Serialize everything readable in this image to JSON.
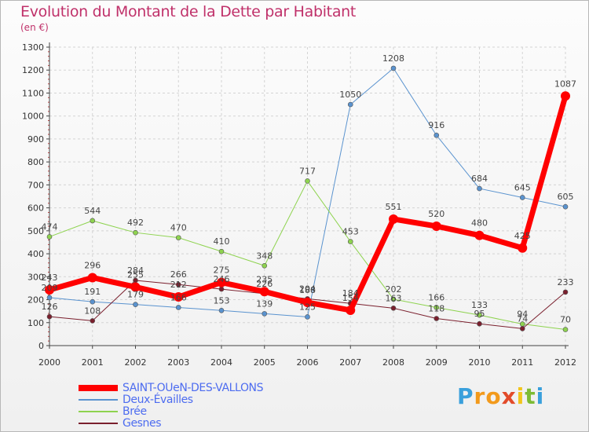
{
  "title": "Evolution du Montant de la Dette par Habitant",
  "subtitle": "(en €)",
  "logo": {
    "letters": [
      "P",
      "r",
      "o",
      "x",
      "i",
      "t",
      "i"
    ],
    "colors": [
      "#3aa0dc",
      "#f29a1c",
      "#f29a1c",
      "#e24b2a",
      "#f2c51c",
      "#7dbb35",
      "#3aa0dc"
    ]
  },
  "chart_data": {
    "type": "line",
    "ylim": [
      0,
      1300
    ],
    "yticks": [
      0,
      100,
      200,
      300,
      400,
      500,
      600,
      700,
      800,
      900,
      1000,
      1100,
      1200,
      1300
    ],
    "categories": [
      "2000",
      "2001",
      "2002",
      "2003",
      "2004",
      "2005",
      "2006",
      "2007",
      "2008",
      "2009",
      "2010",
      "2011",
      "2012"
    ],
    "grid": true,
    "legend_position": "bottom-left",
    "series": [
      {
        "name": "Deux-Évailles",
        "color": "#5a93cf",
        "width": 1,
        "values": [
          209,
          191,
          179,
          166,
          153,
          139,
          125,
          1050,
          1208,
          916,
          684,
          645,
          605
        ],
        "labels": [
          "209",
          "191",
          "179",
          "166",
          "153",
          "139",
          "125",
          "1050",
          "1208",
          "916",
          "684",
          "645",
          "605"
        ]
      },
      {
        "name": "Brée",
        "color": "#8ed34f",
        "width": 1,
        "values": [
          474,
          544,
          492,
          470,
          410,
          348,
          717,
          453,
          202,
          166,
          133,
          94,
          70
        ],
        "labels": [
          "474",
          "544",
          "492",
          "470",
          "410",
          "348",
          "717",
          "453",
          "202",
          "166",
          "133",
          "94",
          "70"
        ]
      },
      {
        "name": "Gesnes",
        "color": "#7a1f2d",
        "width": 1,
        "values": [
          126,
          108,
          284,
          266,
          246,
          226,
          204,
          184,
          163,
          118,
          95,
          74,
          233
        ],
        "labels": [
          "126",
          "108",
          "284",
          "266",
          "246",
          "226",
          "204",
          "184",
          "163",
          "118",
          "95",
          "74",
          "233"
        ]
      },
      {
        "name": "SAINT-OUeN-DES-VALLONS",
        "color": "#ff0000",
        "width": 7,
        "values": [
          243,
          296,
          255,
          212,
          275,
          235,
          188,
          154,
          551,
          520,
          480,
          425,
          1087
        ],
        "labels": [
          "243",
          "296",
          "255",
          "212",
          "275",
          "235",
          "188",
          "154",
          "551",
          "520",
          "480",
          "425",
          "1087"
        ]
      }
    ]
  },
  "legend_order": [
    3,
    0,
    1,
    2
  ]
}
